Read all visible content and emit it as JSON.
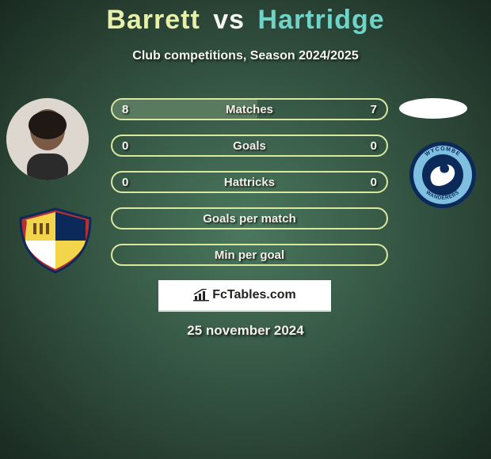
{
  "background": {
    "base_color": "#4a785e",
    "vignette_edge": "#1d2e25"
  },
  "title": {
    "player1": "Barrett",
    "vs": "vs",
    "player2": "Hartridge",
    "fontsize": 34,
    "p1_color": "#e8efa8",
    "vs_color": "#f5f5f2",
    "p2_color": "#6fd3c8"
  },
  "subtitle": {
    "text": "Club competitions, Season 2024/2025",
    "fontsize": 16,
    "color": "#f5f5f2"
  },
  "avatars": {
    "left": {
      "bg": "#ddd7cf"
    },
    "right": {
      "bg": "#ffffff"
    }
  },
  "crests": {
    "left": {
      "shield_fill": "#b72f2e",
      "shield_border": "#0b2a5a",
      "quad_tl": "#f3d54b",
      "quad_tr": "#0b2a5a",
      "quad_bl": "#ffffff",
      "quad_br": "#f3d54b"
    },
    "right": {
      "outer_navy": "#0b2a5a",
      "ring_light": "#7fbfe0",
      "inner_navy": "#0b2a5a",
      "swan_white": "#ffffff",
      "text_top": "WYCOMBE",
      "text_bottom": "WANDERERS",
      "ring_text_color": "#0b2a5a"
    }
  },
  "rows": {
    "border_color": "#d9e7a0",
    "fill_color": "#597a5f",
    "label_color": "#f4efe8",
    "value_color": "#f5f5f2",
    "label_fontsize": 15,
    "value_fontsize": 15,
    "items": [
      {
        "label": "Matches",
        "left": "8",
        "right": "7",
        "fill_pct": 53
      },
      {
        "label": "Goals",
        "left": "0",
        "right": "0",
        "fill_pct": 0
      },
      {
        "label": "Hattricks",
        "left": "0",
        "right": "0",
        "fill_pct": 0
      },
      {
        "label": "Goals per match",
        "left": "",
        "right": "",
        "fill_pct": 0
      },
      {
        "label": "Min per goal",
        "left": "",
        "right": "",
        "fill_pct": 0
      }
    ]
  },
  "branding": {
    "text": "FcTables.com",
    "bg": "#ffffff",
    "text_color": "#222222",
    "fontsize": 16
  },
  "date": {
    "text": "25 november 2024",
    "fontsize": 17,
    "color": "#f4efe8"
  }
}
